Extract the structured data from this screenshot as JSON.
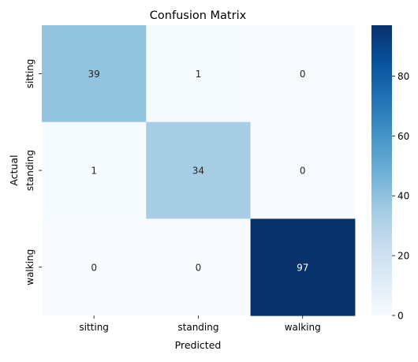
{
  "chart_data": {
    "type": "heatmap",
    "title": "Confusion Matrix",
    "xlabel": "Predicted",
    "ylabel": "Actual",
    "x_categories": [
      "sitting",
      "standing",
      "walking"
    ],
    "y_categories": [
      "sitting",
      "standing",
      "walking"
    ],
    "values": [
      [
        39,
        1,
        0
      ],
      [
        1,
        34,
        0
      ],
      [
        0,
        0,
        97
      ]
    ],
    "colormap": "Blues",
    "colorbar": {
      "range": [
        0,
        97
      ],
      "ticks": [
        0,
        20,
        40,
        60,
        80
      ]
    },
    "colors": {
      "cell_low": "#f7fbff",
      "cell_high": "#08306b",
      "text_dark": "#262626",
      "text_light": "#ffffff"
    }
  }
}
